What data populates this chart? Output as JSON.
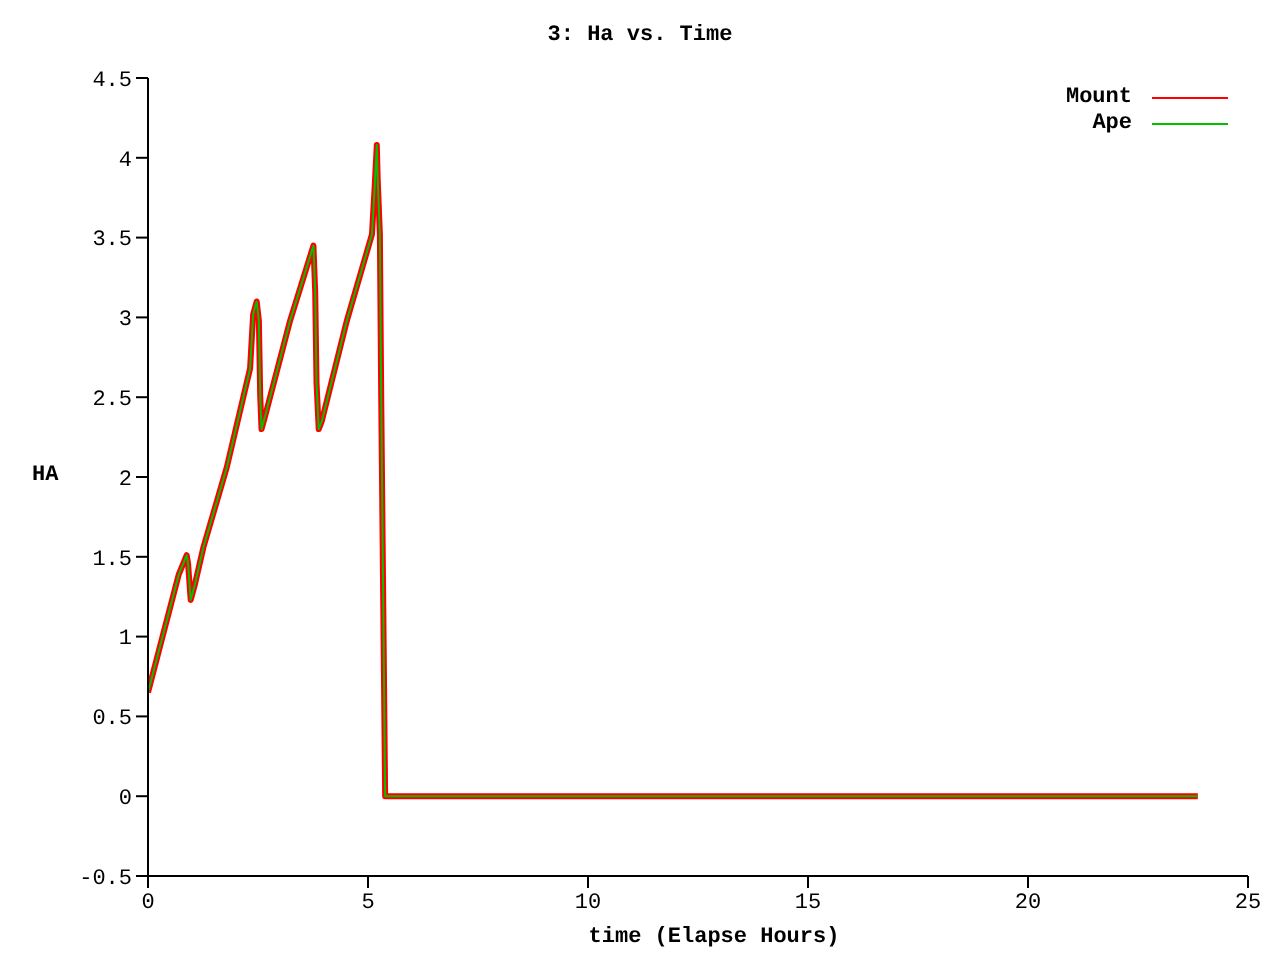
{
  "chart_data": {
    "type": "line",
    "title": "3: Ha vs. Time",
    "xlabel": "time (Elapse Hours)",
    "ylabel": "HA",
    "x": [
      0,
      0.7,
      0.88,
      0.91,
      0.97,
      1.06,
      1.26,
      1.79,
      2.32,
      2.39,
      2.47,
      2.52,
      2.55,
      2.58,
      2.67,
      3.23,
      3.76,
      3.8,
      3.83,
      3.88,
      3.95,
      4.52,
      5.09,
      5.15,
      5.2,
      5.22,
      5.27,
      5.3,
      5.36,
      5.39,
      23.86
    ],
    "series": [
      {
        "name": "Mount",
        "color": "#ff0000",
        "values": [
          0.65,
          1.39,
          1.51,
          1.46,
          1.23,
          1.32,
          1.56,
          2.06,
          2.68,
          3.02,
          3.1,
          2.98,
          2.51,
          2.3,
          2.39,
          2.98,
          3.45,
          3.16,
          2.59,
          2.3,
          2.35,
          2.98,
          3.52,
          3.81,
          4.08,
          3.87,
          3.52,
          2.51,
          0.83,
          0,
          0
        ]
      },
      {
        "name": "Ape",
        "color": "#00c000",
        "values": [
          0.65,
          1.39,
          1.51,
          1.46,
          1.23,
          1.32,
          1.56,
          2.06,
          2.68,
          3.02,
          3.1,
          2.98,
          2.51,
          2.3,
          2.39,
          2.98,
          3.45,
          3.16,
          2.59,
          2.3,
          2.35,
          2.98,
          3.52,
          3.81,
          4.08,
          3.87,
          3.52,
          2.51,
          0.83,
          0,
          0
        ]
      }
    ],
    "xlim": [
      0,
      25
    ],
    "xticks": [
      0,
      5,
      10,
      15,
      20,
      25
    ],
    "ylim": [
      -0.5,
      4.5
    ],
    "yticks": [
      -0.5,
      0,
      0.5,
      1,
      1.5,
      2,
      2.5,
      3,
      3.5,
      4,
      4.5
    ],
    "grid": false,
    "legend": "top right",
    "marker": "none",
    "line_style": "solid"
  }
}
